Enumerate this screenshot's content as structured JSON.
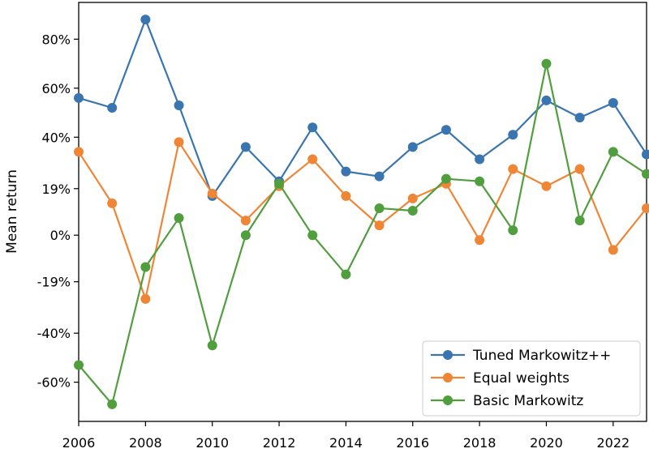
{
  "chart_data": {
    "type": "line",
    "title": "",
    "xlabel": "",
    "ylabel": "Mean return",
    "x": [
      2006,
      2007,
      2008,
      2009,
      2010,
      2011,
      2012,
      2013,
      2014,
      2015,
      2016,
      2017,
      2018,
      2019,
      2020,
      2021,
      2022,
      2023
    ],
    "xlim": [
      2006,
      2023
    ],
    "ylim": [
      -76,
      95
    ],
    "x_ticks": [
      2006,
      2008,
      2010,
      2012,
      2014,
      2016,
      2018,
      2020,
      2022
    ],
    "x_tick_labels": [
      "2006",
      "2008",
      "2010",
      "2012",
      "2014",
      "2016",
      "2018",
      "2020",
      "2022"
    ],
    "y_ticks": [
      -60,
      -40,
      -19,
      0,
      19,
      40,
      60,
      80
    ],
    "y_tick_labels": [
      "-60%",
      "-40%",
      "-19%",
      "0%",
      "19%",
      "40%",
      "60%",
      "80%"
    ],
    "grid": false,
    "legend_position": "bottom-right",
    "series": [
      {
        "name": "Tuned Markowitz++",
        "color": "#3a75af",
        "values": [
          56,
          52,
          88,
          53,
          16,
          36,
          22,
          44,
          26,
          24,
          36,
          43,
          31,
          41,
          55,
          48,
          54,
          33
        ]
      },
      {
        "name": "Equal weights",
        "color": "#ef8636",
        "values": [
          34,
          13,
          -26,
          38,
          17,
          6,
          20,
          31,
          16,
          4,
          15,
          21,
          -2,
          27,
          20,
          27,
          -6,
          11
        ]
      },
      {
        "name": "Basic Markowitz",
        "color": "#519e3e",
        "values": [
          -53,
          -69,
          -13,
          7,
          -45,
          0,
          21,
          0,
          -16,
          11,
          10,
          23,
          22,
          2,
          70,
          6,
          34,
          25
        ]
      }
    ]
  }
}
